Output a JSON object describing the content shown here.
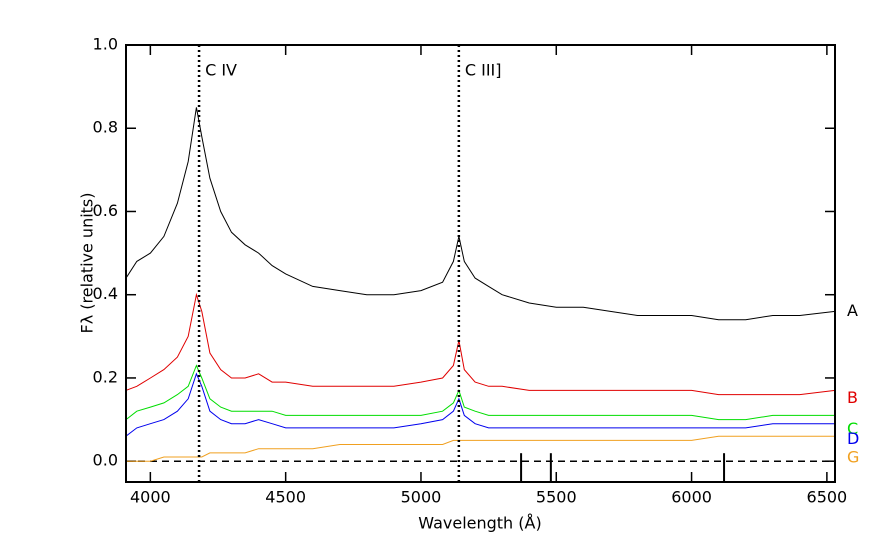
{
  "chart_data": {
    "type": "line",
    "x_label": "Wavelength (Å)",
    "y_label": "Fλ (relative units)",
    "x": [
      3910,
      3950,
      4000,
      4050,
      4100,
      4140,
      4170,
      4190,
      4220,
      4260,
      4300,
      4350,
      4400,
      4450,
      4500,
      4600,
      4700,
      4800,
      4900,
      5000,
      5080,
      5120,
      5140,
      5160,
      5200,
      5250,
      5300,
      5400,
      5500,
      5600,
      5700,
      5800,
      5900,
      6000,
      6100,
      6200,
      6300,
      6400,
      6530
    ],
    "series": [
      {
        "name": "A",
        "color": "#000000",
        "values": [
          0.44,
          0.48,
          0.5,
          0.54,
          0.62,
          0.72,
          0.85,
          0.78,
          0.68,
          0.6,
          0.55,
          0.52,
          0.5,
          0.47,
          0.45,
          0.42,
          0.41,
          0.4,
          0.4,
          0.41,
          0.43,
          0.48,
          0.54,
          0.48,
          0.44,
          0.42,
          0.4,
          0.38,
          0.37,
          0.37,
          0.36,
          0.35,
          0.35,
          0.35,
          0.34,
          0.34,
          0.35,
          0.35,
          0.36
        ]
      },
      {
        "name": "B",
        "color": "#e00000",
        "values": [
          0.17,
          0.18,
          0.2,
          0.22,
          0.25,
          0.3,
          0.4,
          0.36,
          0.26,
          0.22,
          0.2,
          0.2,
          0.21,
          0.19,
          0.19,
          0.18,
          0.18,
          0.18,
          0.18,
          0.19,
          0.2,
          0.23,
          0.29,
          0.22,
          0.19,
          0.18,
          0.18,
          0.17,
          0.17,
          0.17,
          0.17,
          0.17,
          0.17,
          0.17,
          0.16,
          0.16,
          0.16,
          0.16,
          0.17
        ]
      },
      {
        "name": "C",
        "color": "#00dd00",
        "values": [
          0.1,
          0.12,
          0.13,
          0.14,
          0.16,
          0.18,
          0.23,
          0.2,
          0.15,
          0.13,
          0.12,
          0.12,
          0.12,
          0.12,
          0.11,
          0.11,
          0.11,
          0.11,
          0.11,
          0.11,
          0.12,
          0.14,
          0.17,
          0.13,
          0.12,
          0.11,
          0.11,
          0.11,
          0.11,
          0.11,
          0.11,
          0.11,
          0.11,
          0.11,
          0.1,
          0.1,
          0.11,
          0.11,
          0.11
        ]
      },
      {
        "name": "D",
        "color": "#0000ee",
        "values": [
          0.06,
          0.08,
          0.09,
          0.1,
          0.12,
          0.15,
          0.21,
          0.18,
          0.12,
          0.1,
          0.09,
          0.09,
          0.1,
          0.09,
          0.08,
          0.08,
          0.08,
          0.08,
          0.08,
          0.09,
          0.1,
          0.12,
          0.15,
          0.11,
          0.09,
          0.08,
          0.08,
          0.08,
          0.08,
          0.08,
          0.08,
          0.08,
          0.08,
          0.08,
          0.08,
          0.08,
          0.09,
          0.09,
          0.09
        ]
      },
      {
        "name": "G",
        "color": "#f0a020",
        "values": [
          0.0,
          0.0,
          0.0,
          0.01,
          0.01,
          0.01,
          0.01,
          0.01,
          0.02,
          0.02,
          0.02,
          0.02,
          0.03,
          0.03,
          0.03,
          0.03,
          0.04,
          0.04,
          0.04,
          0.04,
          0.04,
          0.05,
          0.05,
          0.05,
          0.05,
          0.05,
          0.05,
          0.05,
          0.05,
          0.05,
          0.05,
          0.05,
          0.05,
          0.05,
          0.06,
          0.06,
          0.06,
          0.06,
          0.06
        ]
      }
    ],
    "lines": [
      {
        "x": 4180,
        "label": "C IV"
      },
      {
        "x": 5140,
        "label": "C III]"
      }
    ],
    "markers": [
      5370,
      5480,
      6120
    ],
    "baseline": 0,
    "xlim": [
      3910,
      6530
    ],
    "ylim": [
      -0.05,
      1.0
    ],
    "xticks": [
      4000,
      4500,
      5000,
      5500,
      6000,
      6500
    ],
    "yticks": [
      {
        "value": 0,
        "label": "0.0"
      },
      0.2,
      0.4,
      0.6,
      0.8,
      {
        "value": 1,
        "label": "1.0"
      }
    ]
  }
}
